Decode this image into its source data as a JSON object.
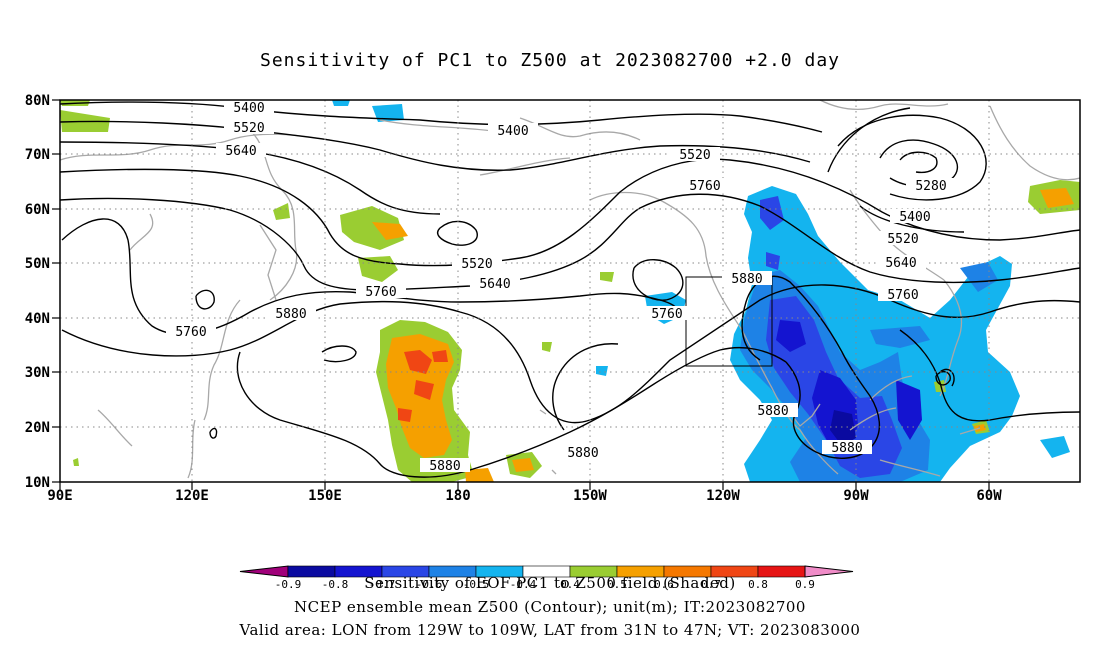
{
  "title": "Sensitivity of PC1 to Z500 at 2023082700 +2.0 day",
  "lat_labels": [
    "80N",
    "70N",
    "60N",
    "50N",
    "40N",
    "30N",
    "20N",
    "10N"
  ],
  "lon_labels": [
    "90E",
    "120E",
    "150E",
    "180",
    "150W",
    "120W",
    "90W",
    "60W"
  ],
  "contours": {
    "unit": "m",
    "labels": [
      {
        "text": "5400",
        "id": "a"
      },
      {
        "text": "5520",
        "id": "b"
      },
      {
        "text": "5640",
        "id": "c"
      },
      {
        "text": "5400",
        "id": "d"
      },
      {
        "text": "5520",
        "id": "e"
      },
      {
        "text": "5760",
        "id": "f"
      },
      {
        "text": "5280",
        "id": "g"
      },
      {
        "text": "5400",
        "id": "h"
      },
      {
        "text": "5520",
        "id": "i"
      },
      {
        "text": "5640",
        "id": "j"
      },
      {
        "text": "5760",
        "id": "k"
      },
      {
        "text": "5880",
        "id": "l"
      },
      {
        "text": "5520",
        "id": "m"
      },
      {
        "text": "5640",
        "id": "n"
      },
      {
        "text": "5760",
        "id": "o"
      },
      {
        "text": "5760",
        "id": "p"
      },
      {
        "text": "5880",
        "id": "q"
      },
      {
        "text": "5760",
        "id": "r"
      },
      {
        "text": "5880",
        "id": "s"
      },
      {
        "text": "5880",
        "id": "t"
      },
      {
        "text": "5880",
        "id": "u"
      },
      {
        "text": "5880",
        "id": "v"
      }
    ]
  },
  "colorbar": {
    "ticks": [
      "-0.9",
      "-0.8",
      "-0.7",
      "-0.6",
      "-0.5",
      "-0.4",
      "0.4",
      "0.5",
      "0.6",
      "0.7",
      "0.8",
      "0.9"
    ],
    "colors": [
      "#a0007a",
      "#0a0aa0",
      "#1414d0",
      "#2a46e6",
      "#1e82e6",
      "#14b4ef",
      "#ffffff",
      "#9acd32",
      "#f5a000",
      "#f57800",
      "#f04614",
      "#e61414",
      "#f08cc8"
    ]
  },
  "captions": {
    "line1": "Sensitivity of EOF PC1 to Z500 field (Shaded)",
    "line2": "NCEP ensemble mean Z500 (Contour); unit(m); IT:2023082700",
    "line3": "Valid area: LON from 129W to 109W, LAT from 31N to 47N; VT: 2023083000"
  }
}
